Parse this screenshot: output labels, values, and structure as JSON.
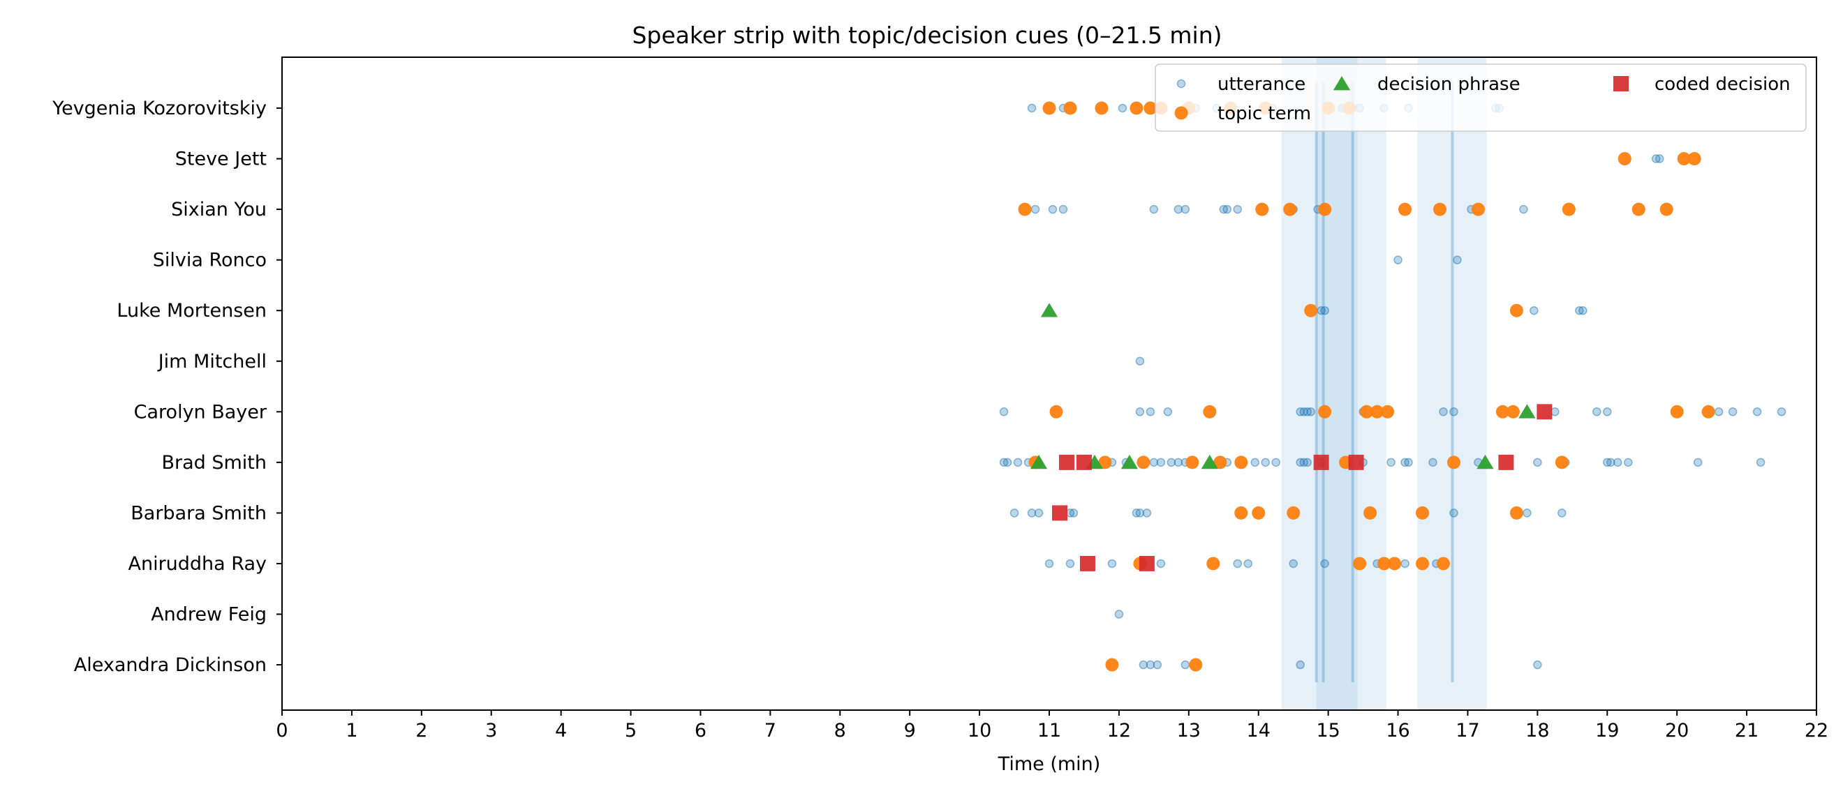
{
  "chart_data": {
    "type": "scatter",
    "title": "Speaker strip with topic/decision cues (0–21.5 min)",
    "xlabel": "Time (min)",
    "ylabel": "",
    "xlim": [
      0,
      22
    ],
    "x_ticks": [
      "0",
      "1",
      "2",
      "3",
      "4",
      "5",
      "6",
      "7",
      "8",
      "9",
      "10",
      "11",
      "12",
      "13",
      "14",
      "15",
      "16",
      "17",
      "18",
      "19",
      "20",
      "21",
      "22"
    ],
    "speakers": [
      "Yevgenia Kozorovitskiy",
      "Steve Jett",
      "Sixian You",
      "Silvia Ronco",
      "Luke Mortensen",
      "Jim Mitchell",
      "Carolyn Bayer",
      "Brad Smith",
      "Barbara Smith",
      "Aniruddha Ray",
      "Andrew Feig",
      "Alexandra Dickinson"
    ],
    "legend_placement": "top-right",
    "legend": [
      "utterance",
      "topic term",
      "decision phrase",
      "coded decision"
    ],
    "colors": {
      "utterance": "#1f77b4",
      "topic": "#ff7f0e",
      "decision": "#2ca02c",
      "coded": "#d62728",
      "band": "#7fb2dd",
      "vline": "#1f77b4"
    },
    "bands": [
      [
        14.33,
        15.83
      ],
      [
        14.83,
        15.42
      ],
      [
        16.28,
        17.27
      ]
    ],
    "vlines": [
      14.83,
      14.93,
      15.35,
      16.78
    ],
    "series": [
      {
        "name": "utterance",
        "marker": "circle-small",
        "points": [
          [
            "Yevgenia Kozorovitskiy",
            [
              10.75,
              11.2,
              12.05,
              12.55,
              13.1,
              13.4,
              14.2,
              15.2,
              15.45,
              15.8,
              16.15,
              17.4,
              17.45
            ]
          ],
          [
            "Steve Jett",
            [
              19.7,
              19.75
            ]
          ],
          [
            "Sixian You",
            [
              10.8,
              11.05,
              11.2,
              12.5,
              12.85,
              12.95,
              13.5,
              13.55,
              13.7,
              14.5,
              14.85,
              14.95,
              17.05,
              17.8
            ]
          ],
          [
            "Silvia Ronco",
            [
              16.0,
              16.85
            ]
          ],
          [
            "Luke Mortensen",
            [
              14.9,
              14.95,
              17.95,
              18.6,
              18.65
            ]
          ],
          [
            "Jim Mitchell",
            [
              12.3
            ]
          ],
          [
            "Carolyn Bayer",
            [
              10.35,
              12.3,
              12.45,
              12.7,
              14.6,
              14.65,
              14.7,
              14.75,
              15.5,
              16.65,
              16.8,
              18.25,
              18.85,
              19.0,
              20.6,
              20.8,
              21.15,
              21.5
            ]
          ],
          [
            "Brad Smith",
            [
              10.35,
              10.4,
              10.55,
              10.7,
              11.9,
              12.1,
              12.5,
              12.6,
              12.75,
              12.85,
              12.95,
              13.55,
              13.95,
              14.1,
              14.25,
              14.6,
              14.65,
              14.7,
              14.9,
              15.5,
              15.9,
              16.1,
              16.15,
              16.5,
              17.15,
              18.0,
              18.4,
              19.0,
              19.05,
              19.15,
              19.3,
              20.3,
              21.2
            ]
          ],
          [
            "Barbara Smith",
            [
              10.5,
              10.75,
              10.85,
              11.3,
              11.35,
              12.25,
              12.3,
              12.4,
              16.8,
              17.85,
              18.35
            ]
          ],
          [
            "Aniruddha Ray",
            [
              11.0,
              11.3,
              11.9,
              12.6,
              13.7,
              13.85,
              14.5,
              14.95,
              15.7,
              16.1,
              16.55
            ]
          ],
          [
            "Andrew Feig",
            [
              12.0
            ]
          ],
          [
            "Alexandra Dickinson",
            [
              12.35,
              12.45,
              12.55,
              12.95,
              14.6,
              18.0
            ]
          ]
        ]
      },
      {
        "name": "topic term",
        "marker": "circle",
        "points": [
          [
            "Yevgenia Kozorovitskiy",
            [
              11.0,
              11.3,
              11.75,
              12.25,
              12.45,
              12.6,
              13.0,
              13.6,
              14.1,
              15.0,
              15.3
            ]
          ],
          [
            "Steve Jett",
            [
              19.25,
              20.1,
              20.25
            ]
          ],
          [
            "Sixian You",
            [
              10.65,
              14.05,
              14.45,
              14.95,
              16.1,
              16.6,
              17.15,
              18.45,
              19.45,
              19.85
            ]
          ],
          [
            "Luke Mortensen",
            [
              14.75,
              17.7
            ]
          ],
          [
            "Carolyn Bayer",
            [
              11.1,
              13.3,
              14.95,
              15.55,
              15.7,
              15.85,
              17.5,
              17.65,
              20.0,
              20.45
            ]
          ],
          [
            "Brad Smith",
            [
              10.8,
              11.8,
              12.35,
              13.05,
              13.45,
              13.75,
              15.25,
              16.8,
              18.35
            ]
          ],
          [
            "Barbara Smith",
            [
              13.75,
              14.0,
              14.5,
              15.6,
              16.35,
              17.7
            ]
          ],
          [
            "Aniruddha Ray",
            [
              12.3,
              13.35,
              15.45,
              15.8,
              15.95,
              16.35,
              16.65
            ]
          ],
          [
            "Alexandra Dickinson",
            [
              11.9,
              13.1
            ]
          ]
        ]
      },
      {
        "name": "decision phrase",
        "marker": "triangle",
        "points": [
          [
            "Luke Mortensen",
            [
              11.0
            ]
          ],
          [
            "Carolyn Bayer",
            [
              17.85
            ]
          ],
          [
            "Brad Smith",
            [
              10.85,
              11.65,
              12.15,
              13.3,
              17.25
            ]
          ]
        ]
      },
      {
        "name": "coded decision",
        "marker": "square",
        "points": [
          [
            "Carolyn Bayer",
            [
              18.1
            ]
          ],
          [
            "Brad Smith",
            [
              11.25,
              11.5,
              14.9,
              15.4,
              17.55
            ]
          ],
          [
            "Barbara Smith",
            [
              11.15
            ]
          ],
          [
            "Aniruddha Ray",
            [
              11.55,
              12.4
            ]
          ]
        ]
      }
    ]
  }
}
